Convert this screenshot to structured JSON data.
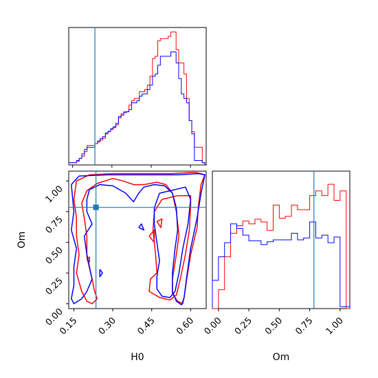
{
  "chart_data": [
    {
      "panel": "H0 marginal",
      "type": "histogram",
      "x_parameter": "H0",
      "xlim": [
        0.135,
        0.66
      ],
      "bin_edges": [
        0.135,
        0.145,
        0.155,
        0.165,
        0.175,
        0.185,
        0.195,
        0.205,
        0.215,
        0.225,
        0.235,
        0.245,
        0.255,
        0.265,
        0.275,
        0.285,
        0.295,
        0.305,
        0.315,
        0.325,
        0.335,
        0.345,
        0.355,
        0.365,
        0.375,
        0.385,
        0.395,
        0.405,
        0.415,
        0.425,
        0.435,
        0.445,
        0.455,
        0.465,
        0.475,
        0.485,
        0.495,
        0.505,
        0.515,
        0.525,
        0.535,
        0.545,
        0.555,
        0.565,
        0.575,
        0.585,
        0.595,
        0.605,
        0.615,
        0.625,
        0.635,
        0.645,
        0.655
      ],
      "series": [
        {
          "color": "#ff0000",
          "values": [
            0.5,
            0.5,
            0.5,
            0.8,
            1.5,
            2.0,
            3.0,
            4.4,
            4.4,
            4.4,
            4.8,
            5.2,
            5.6,
            6.0,
            7.0,
            7.5,
            8.0,
            8.4,
            9.0,
            10.6,
            11.5,
            12.0,
            12.0,
            13.5,
            14.5,
            15.0,
            15.0,
            16.5,
            16.5,
            17.0,
            18.0,
            20.0,
            24.0,
            24.5,
            28.0,
            28.5,
            28.5,
            28.5,
            29.0,
            30.0,
            30.0,
            26.0,
            23.0,
            23.0,
            20.5,
            15.0,
            10.0,
            7.5,
            4.0,
            4.0,
            4.0,
            0.5
          ]
        },
        {
          "color": "#0000ff",
          "values": [
            0.5,
            0.5,
            0.5,
            1.0,
            1.5,
            2.5,
            3.5,
            4.0,
            4.0,
            4.0,
            4.8,
            5.4,
            6.0,
            6.4,
            7.2,
            7.6,
            8.2,
            8.6,
            9.4,
            10.9,
            11.2,
            11.8,
            12.0,
            12.5,
            14.0,
            14.0,
            14.5,
            15.5,
            16.0,
            16.0,
            17.0,
            18.0,
            20.0,
            20.5,
            22.5,
            24.5,
            24.5,
            24.5,
            24.5,
            25.5,
            25.5,
            23.0,
            19.5,
            16.0,
            15.0,
            14.0,
            10.0,
            7.0,
            1.0,
            1.0,
            1.0,
            0.5
          ]
        }
      ],
      "truth_line": 0.235
    },
    {
      "panel": "H0 vs Om contours",
      "type": "contour",
      "x_parameter": "H0",
      "y_parameter": "Om",
      "xlabel": "H0",
      "ylabel": "Om",
      "xlim": [
        0.13,
        0.66
      ],
      "ylim": [
        -0.04,
        1.08
      ],
      "xticks": [
        "0.15",
        "0.30",
        "0.45",
        "0.60"
      ],
      "yticks": [
        "0.00",
        "0.25",
        "0.50",
        "0.75",
        "1.00"
      ],
      "series": [
        {
          "color": "#ff0000",
          "contours": [
            [
              [
                0.16,
                1.0
              ],
              [
                0.21,
                1.05
              ],
              [
                0.3,
                1.06
              ],
              [
                0.44,
                1.06
              ],
              [
                0.53,
                1.06
              ],
              [
                0.62,
                1.07
              ],
              [
                0.655,
                1.05
              ],
              [
                0.64,
                0.97
              ],
              [
                0.63,
                0.8
              ],
              [
                0.625,
                0.62
              ],
              [
                0.6,
                0.4
              ],
              [
                0.585,
                0.2
              ],
              [
                0.575,
                0.05
              ],
              [
                0.57,
                0.0
              ],
              [
                0.55,
                0.02
              ],
              [
                0.53,
                0.08
              ],
              [
                0.53,
                0.2
              ],
              [
                0.545,
                0.4
              ],
              [
                0.555,
                0.56
              ],
              [
                0.545,
                0.75
              ],
              [
                0.53,
                0.9
              ],
              [
                0.505,
                0.97
              ],
              [
                0.47,
                0.99
              ],
              [
                0.42,
                0.97
              ],
              [
                0.38,
                0.97
              ],
              [
                0.34,
                1.0
              ],
              [
                0.3,
                1.02
              ],
              [
                0.24,
                0.98
              ],
              [
                0.2,
                0.92
              ],
              [
                0.18,
                0.82
              ],
              [
                0.19,
                0.7
              ],
              [
                0.2,
                0.55
              ],
              [
                0.2,
                0.38
              ],
              [
                0.22,
                0.2
              ],
              [
                0.23,
                0.1
              ],
              [
                0.24,
                0.04
              ],
              [
                0.22,
                0.0
              ],
              [
                0.2,
                0.02
              ],
              [
                0.18,
                0.1
              ],
              [
                0.16,
                0.25
              ],
              [
                0.17,
                0.4
              ],
              [
                0.16,
                0.55
              ],
              [
                0.16,
                0.7
              ],
              [
                0.15,
                0.85
              ],
              [
                0.16,
                1.0
              ]
            ],
            [
              [
                0.49,
                0.85
              ],
              [
                0.55,
                0.88
              ],
              [
                0.6,
                0.88
              ],
              [
                0.6,
                0.8
              ],
              [
                0.595,
                0.6
              ],
              [
                0.58,
                0.4
              ],
              [
                0.56,
                0.2
              ],
              [
                0.545,
                0.07
              ],
              [
                0.52,
                0.03
              ],
              [
                0.48,
                0.05
              ],
              [
                0.44,
                0.1
              ],
              [
                0.445,
                0.2
              ],
              [
                0.47,
                0.25
              ],
              [
                0.465,
                0.4
              ],
              [
                0.455,
                0.6
              ],
              [
                0.46,
                0.75
              ],
              [
                0.49,
                0.85
              ]
            ],
            [
              [
                0.44,
                0.55
              ],
              [
                0.46,
                0.6
              ],
              [
                0.46,
                0.5
              ],
              [
                0.44,
                0.55
              ]
            ],
            [
              [
                0.47,
                0.67
              ],
              [
                0.49,
                0.69
              ],
              [
                0.485,
                0.62
              ],
              [
                0.47,
                0.67
              ]
            ],
            [
              [
                0.2,
                0.36
              ],
              [
                0.21,
                0.38
              ],
              [
                0.21,
                0.34
              ],
              [
                0.2,
                0.36
              ]
            ]
          ]
        },
        {
          "color": "#0000ff",
          "contours": [
            [
              [
                0.14,
                0.97
              ],
              [
                0.17,
                1.04
              ],
              [
                0.28,
                1.05
              ],
              [
                0.42,
                1.05
              ],
              [
                0.55,
                1.05
              ],
              [
                0.63,
                1.06
              ],
              [
                0.655,
                1.05
              ],
              [
                0.64,
                0.9
              ],
              [
                0.625,
                0.7
              ],
              [
                0.6,
                0.45
              ],
              [
                0.585,
                0.22
              ],
              [
                0.575,
                0.05
              ],
              [
                0.565,
                -0.01
              ],
              [
                0.545,
                0.02
              ],
              [
                0.53,
                0.1
              ],
              [
                0.53,
                0.25
              ],
              [
                0.54,
                0.45
              ],
              [
                0.55,
                0.6
              ],
              [
                0.545,
                0.78
              ],
              [
                0.53,
                0.9
              ],
              [
                0.5,
                0.96
              ],
              [
                0.46,
                0.97
              ],
              [
                0.42,
                0.95
              ],
              [
                0.4,
                0.9
              ],
              [
                0.38,
                0.83
              ],
              [
                0.35,
                0.9
              ],
              [
                0.3,
                0.96
              ],
              [
                0.25,
                0.97
              ],
              [
                0.21,
                0.93
              ],
              [
                0.2,
                0.85
              ],
              [
                0.2,
                0.75
              ],
              [
                0.22,
                0.65
              ],
              [
                0.19,
                0.55
              ],
              [
                0.2,
                0.4
              ],
              [
                0.22,
                0.2
              ],
              [
                0.2,
                0.1
              ],
              [
                0.18,
                0.04
              ],
              [
                0.15,
                0.0
              ],
              [
                0.14,
                0.04
              ],
              [
                0.15,
                0.15
              ],
              [
                0.15,
                0.3
              ],
              [
                0.16,
                0.45
              ],
              [
                0.14,
                0.6
              ],
              [
                0.15,
                0.75
              ],
              [
                0.14,
                0.97
              ]
            ],
            [
              [
                0.48,
                0.9
              ],
              [
                0.52,
                0.92
              ],
              [
                0.58,
                0.95
              ],
              [
                0.6,
                0.85
              ],
              [
                0.59,
                0.65
              ],
              [
                0.57,
                0.45
              ],
              [
                0.555,
                0.25
              ],
              [
                0.54,
                0.1
              ],
              [
                0.52,
                0.05
              ],
              [
                0.49,
                0.06
              ],
              [
                0.47,
                0.12
              ],
              [
                0.47,
                0.22
              ],
              [
                0.48,
                0.35
              ],
              [
                0.47,
                0.5
              ],
              [
                0.46,
                0.65
              ],
              [
                0.46,
                0.78
              ],
              [
                0.48,
                0.9
              ]
            ],
            [
              [
                0.4,
                0.62
              ],
              [
                0.41,
                0.65
              ],
              [
                0.42,
                0.6
              ],
              [
                0.4,
                0.62
              ]
            ],
            [
              [
                0.25,
                0.28
              ],
              [
                0.26,
                0.25
              ],
              [
                0.25,
                0.22
              ],
              [
                0.25,
                0.28
              ]
            ]
          ]
        }
      ],
      "truth_lines": {
        "x": 0.235,
        "y": 0.785
      }
    },
    {
      "panel": "Om marginal",
      "type": "histogram",
      "x_parameter": "Om",
      "xlabel": "Om",
      "xlim": [
        -0.05,
        1.08
      ],
      "xticks": [
        "0.00",
        "0.25",
        "0.50",
        "0.75",
        "1.00"
      ],
      "bin_edges": [
        -0.05,
        0.0,
        0.05,
        0.1,
        0.15,
        0.2,
        0.25,
        0.3,
        0.35,
        0.4,
        0.45,
        0.5,
        0.55,
        0.6,
        0.65,
        0.7,
        0.75,
        0.8,
        0.85,
        0.9,
        0.95,
        1.0,
        1.05,
        1.08
      ],
      "series": [
        {
          "color": "#ff0000",
          "values": [
            0.0,
            2.0,
            5.5,
            8.0,
            8.8,
            9.3,
            9.0,
            9.5,
            9.2,
            8.3,
            11.0,
            9.6,
            9.8,
            11.0,
            10.5,
            10.5,
            12.0,
            12.5,
            12.0,
            13.2,
            11.5,
            12.5,
            0.0
          ]
        },
        {
          "color": "#0000ff",
          "values": [
            3.0,
            5.5,
            7.0,
            9.0,
            8.5,
            7.8,
            7.2,
            7.2,
            6.8,
            7.1,
            7.3,
            7.3,
            7.3,
            8.0,
            7.3,
            7.5,
            9.2,
            7.5,
            7.8,
            7.0,
            7.6,
            0.2,
            0.2
          ]
        }
      ],
      "truth_line": 0.785
    }
  ]
}
